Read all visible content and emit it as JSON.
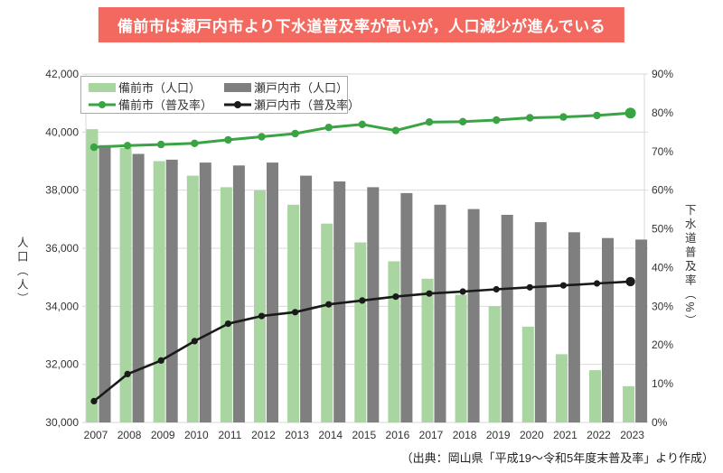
{
  "title": {
    "text": "備前市は瀬戸内市より下水道普及率が高いが，人口減少が進んでいる"
  },
  "source": "（出典：岡山県「平成19～令和5年度末普及率」より作成）",
  "colors": {
    "title_bg": "#f4695f",
    "title_text": "#ffffff",
    "grid": "#d9d9d9",
    "axis_text": "#333333"
  },
  "chart_data": {
    "type": "combo bar+line, dual axis",
    "categories": [
      "2007",
      "2008",
      "2009",
      "2010",
      "2011",
      "2012",
      "2013",
      "2014",
      "2015",
      "2016",
      "2017",
      "2018",
      "2019",
      "2020",
      "2021",
      "2022",
      "2023"
    ],
    "bar_series": [
      {
        "id": "bizen-pop",
        "name": "備前市（人口）",
        "axis": "left",
        "color": "#a8d5a0",
        "values": [
          40100,
          39450,
          39000,
          38500,
          38100,
          38000,
          37500,
          36850,
          36200,
          35550,
          34950,
          34400,
          34000,
          33300,
          32350,
          31800,
          31250
        ]
      },
      {
        "id": "setouchi-pop",
        "name": "瀬戸内市（人口）",
        "axis": "left",
        "color": "#7f7f7f",
        "values": [
          39550,
          39250,
          39050,
          38950,
          38850,
          38950,
          38500,
          38300,
          38100,
          37900,
          37500,
          37350,
          37150,
          36900,
          36550,
          36350,
          36300
        ]
      }
    ],
    "line_series": [
      {
        "id": "bizen-rate",
        "name": "備前市（普及率）",
        "axis": "right",
        "color": "#3aa444",
        "values": [
          71.1,
          71.5,
          71.8,
          72.1,
          73.0,
          73.8,
          74.6,
          76.2,
          77.0,
          75.4,
          77.6,
          77.7,
          78.1,
          78.7,
          78.9,
          79.3,
          79.9
        ]
      },
      {
        "id": "setouchi-rate",
        "name": "瀬戸内市（普及率）",
        "axis": "right",
        "color": "#1a1a1a",
        "values": [
          5.5,
          12.5,
          16.0,
          21.0,
          25.5,
          27.5,
          28.5,
          30.5,
          31.5,
          32.5,
          33.3,
          33.8,
          34.4,
          34.9,
          35.4,
          35.9,
          36.4
        ]
      }
    ],
    "left_axis": {
      "label": "人口（人）",
      "min": 30000,
      "max": 42000,
      "tick_step": 2000,
      "tick_labels": [
        "30,000",
        "32,000",
        "34,000",
        "36,000",
        "38,000",
        "40,000",
        "42,000"
      ]
    },
    "right_axis": {
      "label": "下水道普及率（%）",
      "min": 0,
      "max": 90,
      "tick_step": 10,
      "tick_labels": [
        "0%",
        "10%",
        "20%",
        "30%",
        "40%",
        "50%",
        "60%",
        "70%",
        "80%",
        "90%"
      ]
    },
    "legend_position": "top-left inside plot",
    "grid": "horizontal lines at left-axis ticks"
  }
}
